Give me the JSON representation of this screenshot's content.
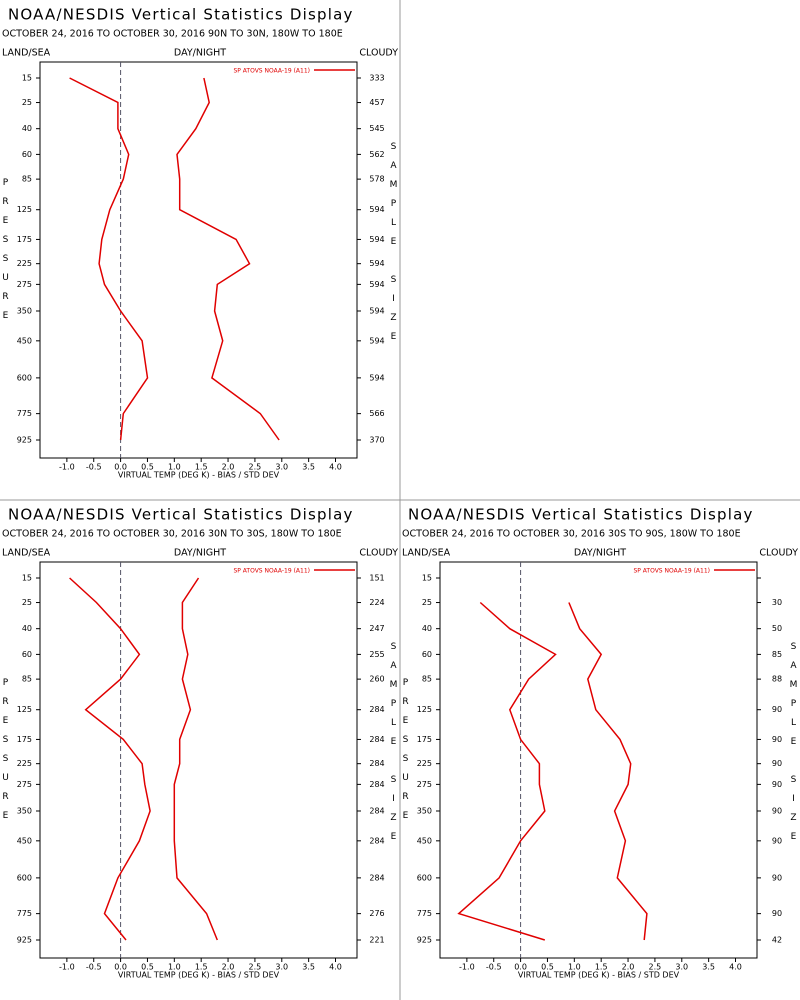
{
  "chart_data": [
    {
      "type": "line",
      "title": "NOAA/NESDIS Vertical Statistics Display",
      "subtitle": "OCTOBER 24, 2016 TO OCTOBER 30, 2016  90N TO 30N, 180W TO 180E",
      "left_header": "LAND/SEA",
      "center_header": "DAY/NIGHT",
      "right_header": "CLOUDY",
      "y_label": "PRESSURE",
      "y2_label": "SAMPLE SIZE",
      "x_label": "VIRTUAL TEMP (DEG K) - BIAS / STD DEV",
      "y": [
        15,
        25,
        40,
        60,
        85,
        125,
        175,
        225,
        275,
        350,
        450,
        600,
        775,
        925
      ],
      "sample_sizes": [
        333,
        457,
        545,
        562,
        578,
        594,
        594,
        594,
        594,
        594,
        594,
        594,
        566,
        370
      ],
      "xlim": [
        -1.5,
        4.4
      ],
      "xticks": [
        {
          "value": -1.0,
          "label": "-1.0"
        },
        -0.5,
        {
          "value": 0,
          "label": "0.0"
        },
        0.5,
        {
          "value": 1,
          "label": "1.0"
        },
        1.5,
        {
          "value": 2,
          "label": "2.0"
        },
        2.5,
        {
          "value": 3,
          "label": "3.0"
        },
        3.5,
        {
          "value": 4,
          "label": "4.0"
        }
      ],
      "series": [
        {
          "name": "SP ATOVS NOAA-19 (A11)",
          "color": "#e00000",
          "values": [
            -0.95,
            -0.05,
            -0.05,
            0.15,
            0.05,
            -0.2,
            -0.35,
            -0.4,
            -0.3,
            0.0,
            0.4,
            0.5,
            0.05,
            0.0
          ]
        },
        {
          "color": "#e00000",
          "values": [
            1.55,
            1.65,
            1.4,
            1.05,
            1.1,
            1.1,
            2.15,
            2.4,
            1.8,
            1.75,
            1.9,
            1.7,
            2.6,
            2.95
          ]
        }
      ]
    },
    {
      "type": "line",
      "title": "NOAA/NESDIS Vertical Statistics Display",
      "subtitle": "OCTOBER 24, 2016 TO OCTOBER 30, 2016  30N TO 30S, 180W TO 180E",
      "left_header": "LAND/SEA",
      "center_header": "DAY/NIGHT",
      "right_header": "CLOUDY",
      "y_label": "PRESSURE",
      "y2_label": "SAMPLE SIZE",
      "x_label": "VIRTUAL TEMP (DEG K) - BIAS / STD DEV",
      "y": [
        15,
        25,
        40,
        60,
        85,
        125,
        175,
        225,
        275,
        350,
        450,
        600,
        775,
        925
      ],
      "sample_sizes": [
        151,
        224,
        247,
        255,
        260,
        284,
        284,
        284,
        284,
        284,
        284,
        284,
        276,
        221
      ],
      "xlim": [
        -1.5,
        4.4
      ],
      "xticks": [
        {
          "value": -1.0,
          "label": "-1.0"
        },
        -0.5,
        {
          "value": 0,
          "label": "0.0"
        },
        0.5,
        {
          "value": 1,
          "label": "1.0"
        },
        1.5,
        {
          "value": 2,
          "label": "2.0"
        },
        2.5,
        {
          "value": 3,
          "label": "3.0"
        },
        3.5,
        {
          "value": 4,
          "label": "4.0"
        }
      ],
      "series": [
        {
          "name": "SP ATOVS NOAA-19 (A11)",
          "color": "#e00000",
          "values": [
            -0.95,
            -0.45,
            0.0,
            0.35,
            0.0,
            -0.65,
            0.05,
            0.4,
            0.45,
            0.55,
            0.35,
            -0.05,
            -0.3,
            0.1
          ]
        },
        {
          "color": "#e00000",
          "values": [
            1.45,
            1.15,
            1.15,
            1.25,
            1.15,
            1.3,
            1.1,
            1.1,
            1.0,
            1.0,
            1.0,
            1.05,
            1.6,
            1.8
          ]
        }
      ]
    },
    {
      "type": "line",
      "title": "NOAA/NESDIS Vertical Statistics Display",
      "subtitle": "OCTOBER 24, 2016 TO OCTOBER 30, 2016  30S TO 90S, 180W TO 180E",
      "left_header": "LAND/SEA",
      "center_header": "DAY/NIGHT",
      "right_header": "CLOUDY",
      "y_label": "PRESSURE",
      "y2_label": "SAMPLE SIZE",
      "x_label": "VIRTUAL TEMP (DEG K) - BIAS / STD DEV",
      "y": [
        15,
        25,
        40,
        60,
        85,
        125,
        175,
        225,
        275,
        350,
        450,
        600,
        775,
        925
      ],
      "sample_sizes": [
        null,
        30,
        50,
        85,
        88,
        90,
        90,
        90,
        90,
        90,
        90,
        90,
        90,
        42
      ],
      "xlim": [
        -1.5,
        4.4
      ],
      "xticks": [
        {
          "value": -1.0,
          "label": "-1.0"
        },
        -0.5,
        {
          "value": 0,
          "label": "0.0"
        },
        0.5,
        {
          "value": 1,
          "label": "1.0"
        },
        1.5,
        {
          "value": 2,
          "label": "2.0"
        },
        2.5,
        {
          "value": 3,
          "label": "3.0"
        },
        3.5,
        {
          "value": 4,
          "label": "4.0"
        }
      ],
      "series": [
        {
          "name": "SP ATOVS NOAA-19 (A11)",
          "color": "#e00000",
          "values": [
            null,
            -0.75,
            -0.2,
            0.65,
            0.15,
            -0.2,
            0.0,
            0.35,
            0.35,
            0.45,
            0.0,
            -0.4,
            -1.15,
            0.45
          ]
        },
        {
          "color": "#e00000",
          "values": [
            null,
            0.9,
            1.1,
            1.5,
            1.25,
            1.4,
            1.85,
            2.05,
            2.0,
            1.75,
            1.95,
            1.8,
            2.35,
            2.3
          ]
        }
      ]
    }
  ]
}
